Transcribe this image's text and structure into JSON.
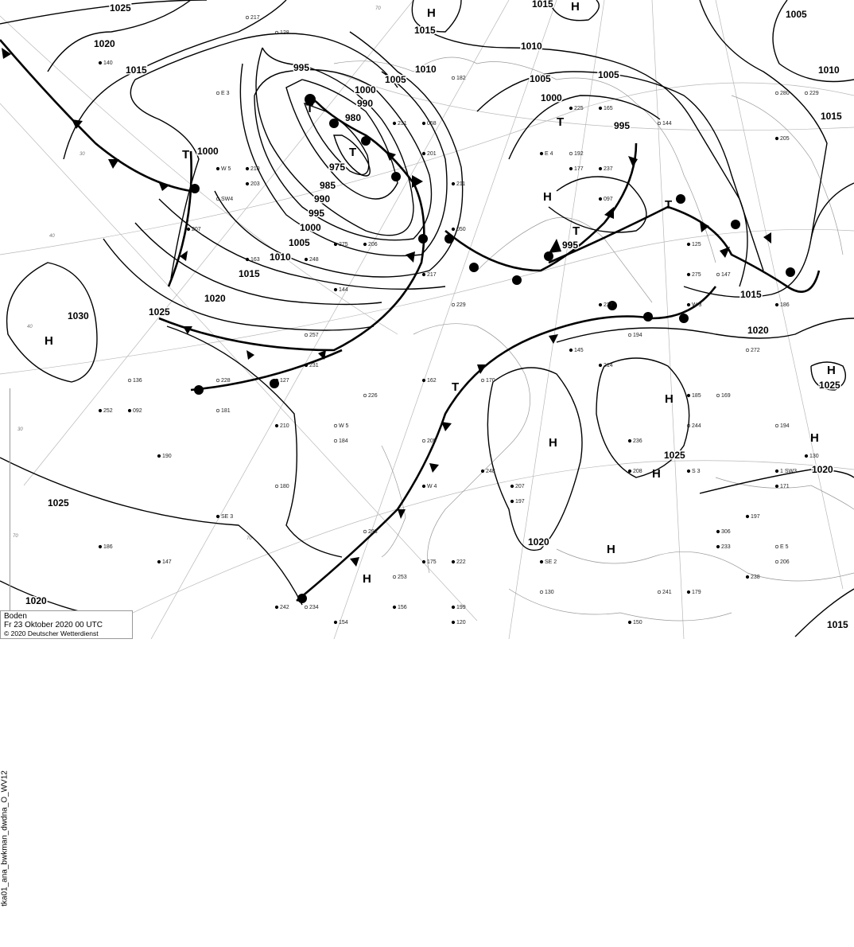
{
  "map": {
    "product_id": "tka01_ana_bwkman_dwdna_O_WV12",
    "caption": {
      "level": "Boden",
      "valid_time": "Fr 23 Oktober 2020 00 UTC",
      "copyright": "© 2020 Deutscher Wetterdienst"
    },
    "isobar_labels": [
      "1025",
      "1020",
      "1015",
      "1000",
      "995",
      "1000",
      "1005",
      "1010",
      "990",
      "980",
      "975",
      "985",
      "990",
      "995",
      "1000",
      "1005",
      "1010",
      "1015",
      "1025",
      "1020",
      "1030",
      "1025",
      "1020",
      "1015",
      "1015",
      "1010",
      "1005",
      "1000",
      "1005",
      "995",
      "995",
      "1005",
      "1010",
      "1015",
      "1015",
      "1020",
      "1025",
      "1025",
      "1020",
      "1020",
      "1015"
    ],
    "pressure_centers": [
      "H",
      "H",
      "H",
      "T",
      "T",
      "T",
      "T",
      "H",
      "T",
      "T",
      "H",
      "H",
      "H",
      "H",
      "H",
      "H",
      "H",
      "T"
    ],
    "grid_labels": [
      "30",
      "40",
      "30",
      "70",
      "70",
      "40",
      "70"
    ],
    "station_samples": [
      "229",
      "207",
      "163",
      "147",
      "252",
      "058",
      "293",
      "275",
      "275",
      "272",
      "236",
      "231",
      "229",
      "211",
      "306",
      "280",
      "127",
      "154",
      "144",
      "140",
      "179",
      "184",
      "197",
      "201",
      "206",
      "207",
      "197",
      "194",
      "165",
      "171",
      "205",
      "210",
      "190",
      "182",
      "238",
      "242",
      "241",
      "208",
      "222",
      "253",
      "248",
      "233",
      "217",
      "206",
      "186",
      "169",
      "162",
      "156",
      "194",
      "203",
      "214",
      "234",
      "248",
      "227",
      "226",
      "225",
      "217",
      "257",
      "097",
      "120",
      "128",
      "145",
      "147",
      "170",
      "175",
      "185",
      "192",
      "199",
      "210",
      "228",
      "231",
      "237",
      "244",
      "130",
      "125",
      "136",
      "144",
      "186",
      "181",
      "050",
      "092",
      "130",
      "150",
      "177",
      "180",
      "205",
      "1 SW3",
      "SW4",
      "W 5",
      "E 4",
      "E 5",
      "SE 3",
      "W 3",
      "E 3",
      "S 3",
      "SE 2",
      "W 5",
      "W 4"
    ]
  }
}
